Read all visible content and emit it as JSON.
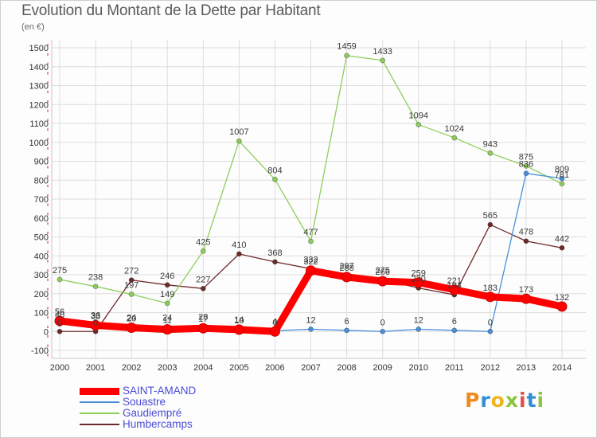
{
  "title": "Evolution du Montant de la Dette par Habitant",
  "unit": "(en €)",
  "logo": "Proxiti",
  "logo_colors": [
    "#f08a1c",
    "#2f8fd6",
    "#f0b51c",
    "#8bc53f",
    "#e34b4b",
    "#2f8fd6",
    "#8bc53f"
  ],
  "chart_data": {
    "type": "line",
    "title": "Evolution du Montant de la Dette par Habitant",
    "subtitle": "(en €)",
    "xlabel": "",
    "ylabel": "",
    "x": [
      "2000",
      "2001",
      "2002",
      "2003",
      "2004",
      "2005",
      "2006",
      "2007",
      "2008",
      "2009",
      "2010",
      "2011",
      "2012",
      "2013",
      "2014"
    ],
    "ylim": [
      -100,
      1500
    ],
    "yticks": [
      -100,
      0,
      100,
      200,
      300,
      400,
      500,
      600,
      700,
      800,
      900,
      1000,
      1100,
      1200,
      1300,
      1400,
      1500
    ],
    "grid": true,
    "legend_position": "bottom-left",
    "series": [
      {
        "name": "SAINT-AMAND",
        "color": "#ff0000",
        "values": [
          56,
          33,
          20,
          11,
          17,
          10,
          0,
          322,
          288,
          266,
          259,
          221,
          183,
          173,
          132
        ],
        "labels": [
          "56",
          "33",
          "20",
          "11",
          "17",
          "10",
          "0",
          "322",
          "288",
          "266",
          "259",
          "221",
          "183",
          "173",
          "132"
        ]
      },
      {
        "name": "Souastre",
        "color": "#4a90d9",
        "values": [
          40,
          36,
          24,
          24,
          28,
          14,
          4,
          12,
          6,
          0,
          12,
          6,
          0,
          836,
          809
        ],
        "labels": [
          "40",
          "36",
          "24",
          "24",
          "28",
          "14",
          "4",
          "12",
          "6",
          "0",
          "12",
          "6",
          "0",
          "836",
          "809"
        ]
      },
      {
        "name": "Gaudiempré",
        "color": "#8dce5a",
        "values": [
          275,
          238,
          197,
          149,
          425,
          1007,
          804,
          477,
          1459,
          1433,
          1094,
          1024,
          943,
          875,
          781
        ],
        "labels": [
          "275",
          "238",
          "197",
          "149",
          "425",
          "1007",
          "804",
          "477",
          "1459",
          "1433",
          "1094",
          "1024",
          "943",
          "875",
          "781"
        ]
      },
      {
        "name": "Humbercamps",
        "color": "#6e2a2a",
        "values": [
          0,
          0,
          272,
          246,
          227,
          410,
          368,
          332,
          297,
          275,
          230,
          194,
          565,
          478,
          442
        ],
        "labels": [
          "0",
          "0",
          "272",
          "246",
          "227",
          "410",
          "368",
          "332",
          "297",
          "275",
          "230",
          "194",
          "565",
          "478",
          "442"
        ]
      }
    ]
  }
}
